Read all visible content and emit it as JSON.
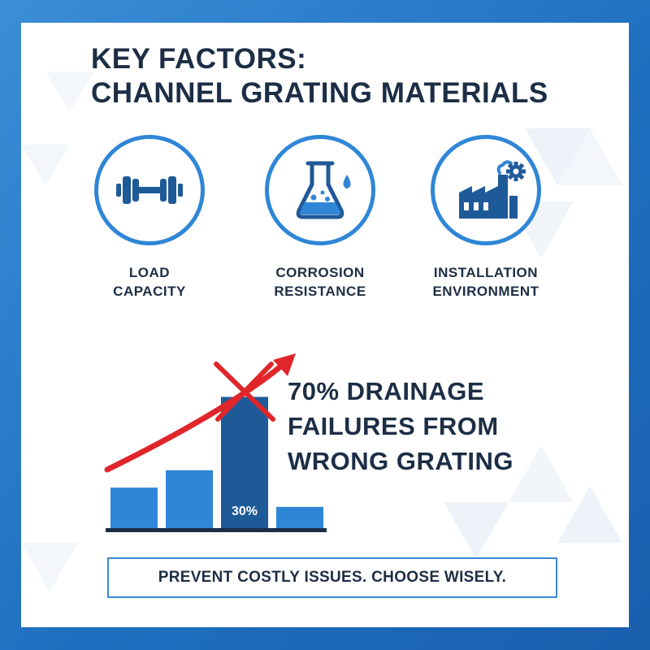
{
  "title": {
    "line1": "KEY FACTORS:",
    "line2": "CHANNEL GRATING MATERIALS"
  },
  "factors": [
    {
      "icon": "dumbbell-icon",
      "line1": "LOAD",
      "line2": "CAPACITY"
    },
    {
      "icon": "flask-icon",
      "line1": "CORROSION",
      "line2": "RESISTANCE"
    },
    {
      "icon": "factory-icon",
      "line1": "INSTALLATION",
      "line2": "ENVIRONMENT"
    }
  ],
  "chart_data": {
    "type": "bar",
    "categories": [
      "",
      "",
      "",
      ""
    ],
    "values": [
      2.1,
      3.0,
      6.8,
      1.1
    ],
    "data_labels": [
      "",
      "",
      "30%",
      ""
    ],
    "title": "",
    "xlabel": "",
    "ylabel": "",
    "ylim": [
      0,
      8
    ],
    "grid": false,
    "legend": "none",
    "annotations": [
      "red rising trend arrow",
      "red x mark over tallest bar"
    ]
  },
  "stat": {
    "line1": "70% DRAINAGE",
    "line2": "FAILURES FROM",
    "line3": "WRONG GRATING"
  },
  "cta": {
    "text": "PREVENT COSTLY ISSUES. CHOOSE WISELY."
  },
  "colors": {
    "primary_blue": "#2f86d6",
    "dark_blue": "#1f5a98",
    "navy_text": "#1c2e45",
    "accent_red": "#e0262b"
  }
}
